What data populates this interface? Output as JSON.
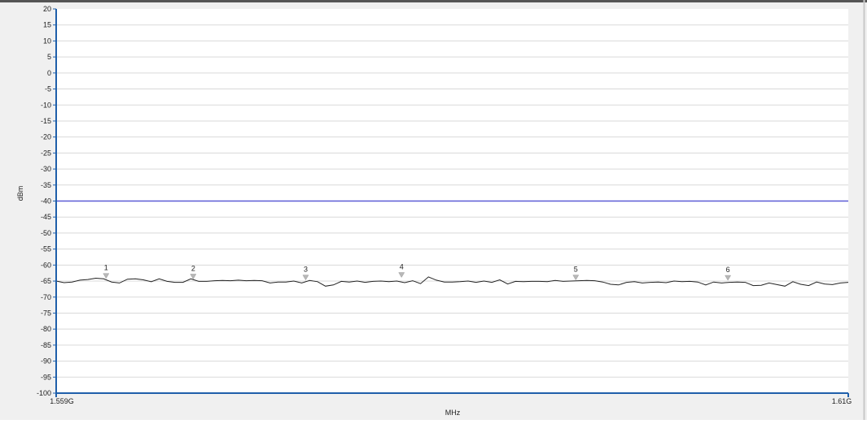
{
  "chart_data": {
    "type": "line",
    "xlabel": "MHz",
    "ylabel": "dBm",
    "x_start_label": "1.559G",
    "x_end_label": "1.61G",
    "ylim": [
      -100,
      20
    ],
    "y_ticks": [
      "20",
      "15",
      "10",
      "5",
      "0",
      "-5",
      "-10",
      "-15",
      "-20",
      "-25",
      "-30",
      "-35",
      "-40",
      "-45",
      "-50",
      "-55",
      "-60",
      "-65",
      "-70",
      "-75",
      "-80",
      "-85",
      "-90",
      "-95",
      "-100"
    ],
    "grid": true,
    "limit_line": {
      "value": -40,
      "color": "#5b5bd6"
    },
    "series": [
      {
        "color": "#222222",
        "x": [
          0,
          1,
          2,
          3,
          4,
          5,
          6,
          7,
          8,
          9,
          10,
          11,
          12,
          13,
          14,
          15,
          16,
          17,
          18,
          19,
          20,
          21,
          22,
          23,
          24,
          25,
          26,
          27,
          28,
          29,
          30,
          31,
          32,
          33,
          34,
          35,
          36,
          37,
          38,
          39,
          40,
          41,
          42,
          43,
          44,
          45,
          46,
          47,
          48,
          49,
          50,
          51,
          52,
          53,
          54,
          55,
          56,
          57,
          58,
          59,
          60,
          61,
          62,
          63,
          64,
          65,
          66,
          67,
          68,
          69,
          70,
          71,
          72,
          73,
          74,
          75,
          76,
          77,
          78,
          79,
          80,
          81,
          82,
          83,
          84,
          85,
          86,
          87,
          88,
          89,
          90,
          91,
          92,
          93,
          94,
          95,
          96,
          97,
          98,
          99,
          100
        ],
        "y": [
          -65.0,
          -65.5,
          -65.3,
          -64.7,
          -64.5,
          -64.1,
          -64.3,
          -65.3,
          -65.6,
          -64.4,
          -64.3,
          -64.6,
          -65.2,
          -64.3,
          -65.1,
          -65.4,
          -65.4,
          -64.3,
          -65.1,
          -65.1,
          -64.9,
          -64.8,
          -64.9,
          -64.7,
          -64.9,
          -64.8,
          -64.9,
          -65.6,
          -65.3,
          -65.3,
          -65.0,
          -65.6,
          -64.8,
          -65.2,
          -66.6,
          -66.2,
          -65.1,
          -65.3,
          -65.0,
          -65.4,
          -65.1,
          -65.0,
          -65.2,
          -65.0,
          -65.5,
          -64.9,
          -65.8,
          -63.7,
          -64.7,
          -65.3,
          -65.3,
          -65.2,
          -65.0,
          -65.4,
          -65.0,
          -65.4,
          -64.6,
          -65.9,
          -65.1,
          -65.2,
          -65.1,
          -65.1,
          -65.2,
          -64.8,
          -65.1,
          -65.0,
          -64.9,
          -64.8,
          -64.9,
          -65.3,
          -66.0,
          -66.2,
          -65.4,
          -65.2,
          -65.6,
          -65.4,
          -65.3,
          -65.5,
          -65.0,
          -65.2,
          -65.1,
          -65.3,
          -66.2,
          -65.3,
          -65.6,
          -65.4,
          -65.3,
          -65.4,
          -66.4,
          -66.3,
          -65.6,
          -66.1,
          -66.6,
          -65.2,
          -66.0,
          -66.4,
          -65.3,
          -65.9,
          -66.1,
          -65.6,
          -65.4
        ],
        "x_units_note": "fraction of span 1.559G to 1.61G, in percent"
      }
    ],
    "markers": [
      {
        "label": "1",
        "x": 6.3,
        "y": -63.9
      },
      {
        "label": "2",
        "x": 17.3,
        "y": -64.1
      },
      {
        "label": "3",
        "x": 31.5,
        "y": -64.4
      },
      {
        "label": "4",
        "x": 43.6,
        "y": -63.6
      },
      {
        "label": "5",
        "x": 65.6,
        "y": -64.4
      },
      {
        "label": "6",
        "x": 84.8,
        "y": -64.5
      }
    ]
  }
}
